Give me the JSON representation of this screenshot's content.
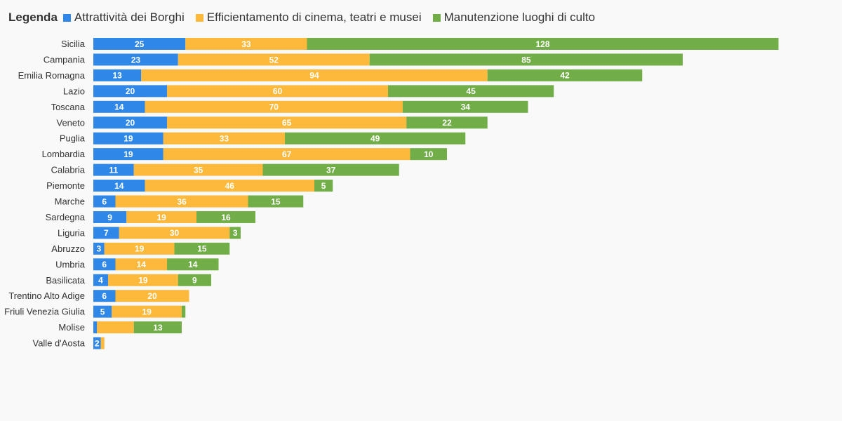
{
  "legend": {
    "title": "Legenda"
  },
  "chart_data": {
    "type": "bar",
    "orientation": "horizontal",
    "stacked": true,
    "categories": [
      "Sicilia",
      "Campania",
      "Emilia Romagna",
      "Lazio",
      "Toscana",
      "Veneto",
      "Puglia",
      "Lombardia",
      "Calabria",
      "Piemonte",
      "Marche",
      "Sardegna",
      "Liguria",
      "Abruzzo",
      "Umbria",
      "Basilicata",
      "Trentino Alto Adige",
      "Friuli Venezia Giulia",
      "Molise",
      "Valle d'Aosta"
    ],
    "series": [
      {
        "name": "Attrattività dei Borghi",
        "color": "#2f87e8",
        "values": [
          25,
          23,
          13,
          20,
          14,
          20,
          19,
          19,
          11,
          14,
          6,
          9,
          7,
          3,
          6,
          4,
          6,
          5,
          1,
          2
        ]
      },
      {
        "name": "Efficientamento di cinema, teatri e musei",
        "color": "#fdb93b",
        "values": [
          33,
          52,
          94,
          60,
          70,
          65,
          33,
          67,
          35,
          46,
          36,
          19,
          30,
          19,
          14,
          19,
          20,
          19,
          10,
          1
        ]
      },
      {
        "name": "Manutenzione luoghi di culto",
        "color": "#71ae48",
        "values": [
          128,
          85,
          42,
          45,
          34,
          22,
          49,
          10,
          37,
          5,
          15,
          16,
          3,
          15,
          14,
          9,
          0,
          1,
          13,
          0
        ]
      }
    ],
    "hidden_value_labels": [
      [
        18,
        0
      ],
      [
        18,
        1
      ],
      [
        19,
        1
      ],
      [
        17,
        2
      ]
    ],
    "xlim": [
      0,
      186
    ],
    "grid": false,
    "legend_position": "top-left"
  }
}
